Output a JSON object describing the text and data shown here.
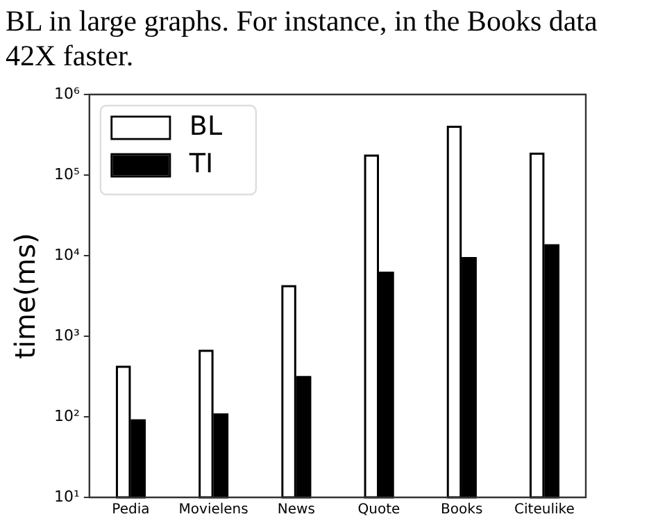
{
  "chart_data": {
    "type": "bar",
    "annotations": [
      "BL in large graphs. For instance, in the Books data",
      "42X faster."
    ],
    "categories": [
      "Pedia",
      "Movielens",
      "News",
      "Quote",
      "Books",
      "Citeulike"
    ],
    "series": [
      {
        "name": "BL",
        "color": "#ffffff",
        "values": [
          430,
          680,
          4300,
          180000,
          410000,
          190000
        ]
      },
      {
        "name": "TI",
        "color": "#000000",
        "values": [
          93,
          110,
          320,
          6300,
          9600,
          13800
        ]
      }
    ],
    "ylabel": "time(ms)",
    "log": true,
    "ylim": [
      10,
      1000000
    ],
    "yticks": [
      {
        "value": 10,
        "label": "10¹"
      },
      {
        "value": 100,
        "label": "10²"
      },
      {
        "value": 1000,
        "label": "10³"
      },
      {
        "value": 10000,
        "label": "10⁴"
      },
      {
        "value": 100000,
        "label": "10⁵"
      },
      {
        "value": 1000000,
        "label": "10⁶"
      }
    ],
    "legend": "top left",
    "grid": false
  }
}
